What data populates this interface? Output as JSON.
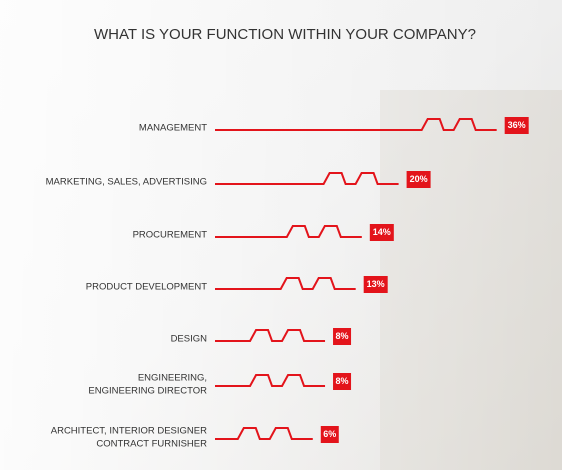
{
  "chart_data": {
    "type": "bar",
    "title": "WHAT IS YOUR FUNCTION WITHIN YOUR COMPANY?",
    "categories": [
      "MANAGEMENT",
      "MARKETING, SALES, ADVERTISING",
      "PROCUREMENT",
      "PRODUCT DEVELOPMENT",
      "DESIGN",
      "ENGINEERING,\nENGINEERING DIRECTOR",
      "ARCHITECT, INTERIOR DESIGNER\nCONTRACT FURNISHER"
    ],
    "values": [
      36,
      20,
      14,
      13,
      8,
      8,
      6
    ],
    "value_labels": [
      "36%",
      "20%",
      "14%",
      "13%",
      "8%",
      "8%",
      "6%"
    ],
    "color": "#e3141b"
  }
}
